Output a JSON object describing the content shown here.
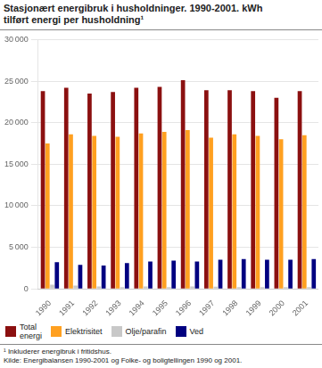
{
  "chart_data": {
    "type": "bar",
    "title": "Stasjonært energibruk i husholdninger. 1990-2001. kWh\ntilført energi per husholdning¹",
    "annotations": [
      "¹ Inkluderer energibruk i fritidshus.",
      "Kilde: Energibalansen 1990-2001 og Folke- og boligtellingen 1990 og 2001."
    ],
    "categories": [
      "1990",
      "1991",
      "1992",
      "1993",
      "1994",
      "1995",
      "1996",
      "1997",
      "1998",
      "1999",
      "2000",
      "2001"
    ],
    "series": [
      {
        "name": "Total\nenergi",
        "color": "#8B1010",
        "values": [
          23800,
          24200,
          23500,
          23700,
          24200,
          24300,
          25100,
          23900,
          23900,
          23800,
          23000,
          23800
        ]
      },
      {
        "name": "Elektrisitet",
        "color": "#FFA020",
        "values": [
          17500,
          18600,
          18400,
          18300,
          18700,
          18900,
          19100,
          18200,
          18600,
          18400,
          18000,
          18500
        ]
      },
      {
        "name": "Olje/parafin",
        "color": "#C8C8C8",
        "values": [
          500,
          400,
          300,
          200,
          300,
          200,
          300,
          250,
          200,
          200,
          200,
          200
        ]
      },
      {
        "name": "Ved",
        "color": "#000080",
        "values": [
          3200,
          2900,
          2800,
          3100,
          3300,
          3400,
          3300,
          3500,
          3600,
          3500,
          3500,
          3600
        ]
      }
    ],
    "ylim": [
      0,
      30000
    ],
    "yticks": [
      0,
      {
        "value": 5000,
        "label": "5 000"
      },
      {
        "value": 10000,
        "label": "10 000"
      },
      {
        "value": 15000,
        "label": "15 000"
      },
      {
        "value": 20000,
        "label": "20 000"
      },
      {
        "value": 25000,
        "label": "25 000"
      },
      {
        "value": 30000,
        "label": "30 000"
      }
    ],
    "grid": true,
    "legend": "bottom"
  }
}
